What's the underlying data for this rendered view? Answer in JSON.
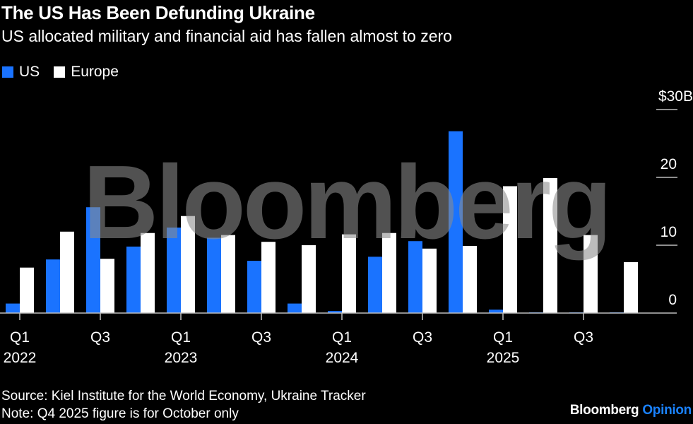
{
  "header": {
    "title": "The US Has Been Defunding Ukraine",
    "subtitle": "US allocated military and financial aid has fallen almost to zero"
  },
  "legend": [
    {
      "label": "US",
      "color": "#1a73ff"
    },
    {
      "label": "Europe",
      "color": "#ffffff"
    }
  ],
  "watermark": "Bloomberg",
  "footer": {
    "source": "Source: Kiel Institute for the World Economy, Ukraine Tracker",
    "note": "Note: Q4 2025 figure is for October only",
    "brand_main": "Bloomberg",
    "brand_accent": "Opinion"
  },
  "chart_data": {
    "type": "bar",
    "title": "The US Has Been Defunding Ukraine",
    "subtitle": "US allocated military and financial aid has fallen almost to zero",
    "xlabel": "",
    "ylabel": "",
    "ylim": [
      0,
      30
    ],
    "y_unit_label": "$30B",
    "yticks": [
      {
        "value": 30,
        "label": "$30B"
      },
      {
        "value": 20,
        "label": "20"
      },
      {
        "value": 10,
        "label": "10"
      },
      {
        "value": 0,
        "label": "0"
      }
    ],
    "categories": [
      "Q1 2022",
      "Q2 2022",
      "Q3 2022",
      "Q4 2022",
      "Q1 2023",
      "Q2 2023",
      "Q3 2023",
      "Q4 2023",
      "Q1 2024",
      "Q2 2024",
      "Q3 2024",
      "Q4 2024",
      "Q1 2025",
      "Q2 2025",
      "Q3 2025",
      "Q4 2025"
    ],
    "xtick_labels": [
      {
        "index": 0,
        "line1": "Q1",
        "line2": "2022"
      },
      {
        "index": 2,
        "line1": "Q3",
        "line2": ""
      },
      {
        "index": 4,
        "line1": "Q1",
        "line2": "2023"
      },
      {
        "index": 6,
        "line1": "Q3",
        "line2": ""
      },
      {
        "index": 8,
        "line1": "Q1",
        "line2": "2024"
      },
      {
        "index": 10,
        "line1": "Q3",
        "line2": ""
      },
      {
        "index": 12,
        "line1": "Q1",
        "line2": "2025"
      },
      {
        "index": 14,
        "line1": "Q3",
        "line2": ""
      }
    ],
    "series": [
      {
        "name": "US",
        "color": "#1a73ff",
        "values": [
          1.4,
          7.9,
          15.6,
          9.8,
          12.6,
          11.1,
          7.7,
          1.4,
          0.3,
          8.3,
          10.6,
          26.8,
          0.5,
          0.1,
          0.1,
          0.1
        ]
      },
      {
        "name": "Europe",
        "color": "#ffffff",
        "values": [
          6.7,
          12.0,
          8.0,
          11.8,
          14.3,
          11.5,
          10.5,
          10.0,
          11.6,
          11.8,
          9.5,
          9.9,
          18.7,
          19.9,
          11.5,
          7.5
        ]
      }
    ],
    "legend_position": "top-left",
    "grid": false,
    "y_axis_side": "right"
  }
}
